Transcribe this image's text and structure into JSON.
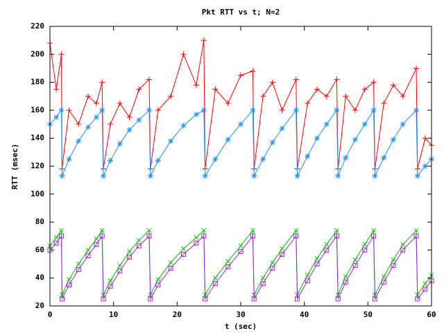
{
  "chart_data": {
    "type": "line",
    "title": "Pkt RTT vs t; N=2",
    "xlabel": "t (sec)",
    "ylabel": "RTT (msec)",
    "xlim": [
      0,
      60
    ],
    "xticks": [
      0,
      10,
      20,
      30,
      40,
      50,
      60
    ],
    "ylim": [
      20,
      220
    ],
    "yticks": [
      20,
      40,
      60,
      80,
      100,
      120,
      140,
      160,
      180,
      200,
      220
    ],
    "x": [
      0,
      1,
      1.8,
      1.9,
      3,
      4.5,
      6,
      7.3,
      8.2,
      8.4,
      9.5,
      11,
      12.5,
      14,
      15.6,
      15.8,
      17,
      19,
      21,
      23,
      24.2,
      24.4,
      26,
      28,
      30,
      31.9,
      32.1,
      33.5,
      35,
      36.5,
      38.7,
      38.9,
      40.5,
      42,
      43.5,
      45.1,
      45.3,
      46.5,
      48,
      49.5,
      50.9,
      51.1,
      52.5,
      54,
      55.5,
      57.6,
      57.8,
      59,
      60
    ],
    "series": [
      {
        "color": "#ff0000",
        "marker": "plus",
        "values": [
          208,
          175,
          200,
          118,
          160,
          150,
          170,
          165,
          180,
          118,
          150,
          165,
          155,
          175,
          182,
          118,
          160,
          170,
          200,
          178,
          210,
          118,
          175,
          165,
          185,
          188,
          118,
          170,
          180,
          160,
          182,
          118,
          165,
          175,
          170,
          182,
          118,
          170,
          160,
          175,
          180,
          118,
          165,
          178,
          170,
          190,
          118,
          140,
          135
        ]
      },
      {
        "color": "#1e90ff",
        "marker": "star",
        "values": [
          150,
          155,
          160,
          113,
          125,
          138,
          148,
          155,
          160,
          113,
          124,
          136,
          146,
          153,
          160,
          113,
          124,
          138,
          149,
          157,
          160,
          113,
          125,
          139,
          150,
          160,
          113,
          125,
          137,
          147,
          160,
          113,
          127,
          140,
          150,
          160,
          113,
          126,
          139,
          150,
          160,
          113,
          126,
          139,
          150,
          160,
          113,
          120,
          125
        ]
      },
      {
        "color": "#00c000",
        "marker": "cross",
        "values": [
          63,
          69,
          74,
          28,
          39,
          50,
          60,
          68,
          74,
          28,
          38,
          49,
          59,
          67,
          74,
          28,
          39,
          51,
          61,
          69,
          74,
          28,
          40,
          52,
          63,
          74,
          28,
          40,
          51,
          61,
          74,
          28,
          42,
          54,
          64,
          74,
          28,
          41,
          53,
          64,
          74,
          28,
          41,
          53,
          64,
          74,
          28,
          36,
          42
        ]
      },
      {
        "color": "#a020f0",
        "marker": "square",
        "values": [
          60,
          65,
          70,
          25,
          35,
          46,
          56,
          64,
          70,
          25,
          34,
          45,
          55,
          63,
          70,
          25,
          35,
          47,
          57,
          65,
          70,
          25,
          36,
          48,
          59,
          70,
          25,
          36,
          47,
          57,
          70,
          25,
          38,
          50,
          60,
          70,
          25,
          37,
          49,
          60,
          70,
          25,
          37,
          49,
          60,
          70,
          25,
          32,
          38
        ]
      }
    ]
  }
}
